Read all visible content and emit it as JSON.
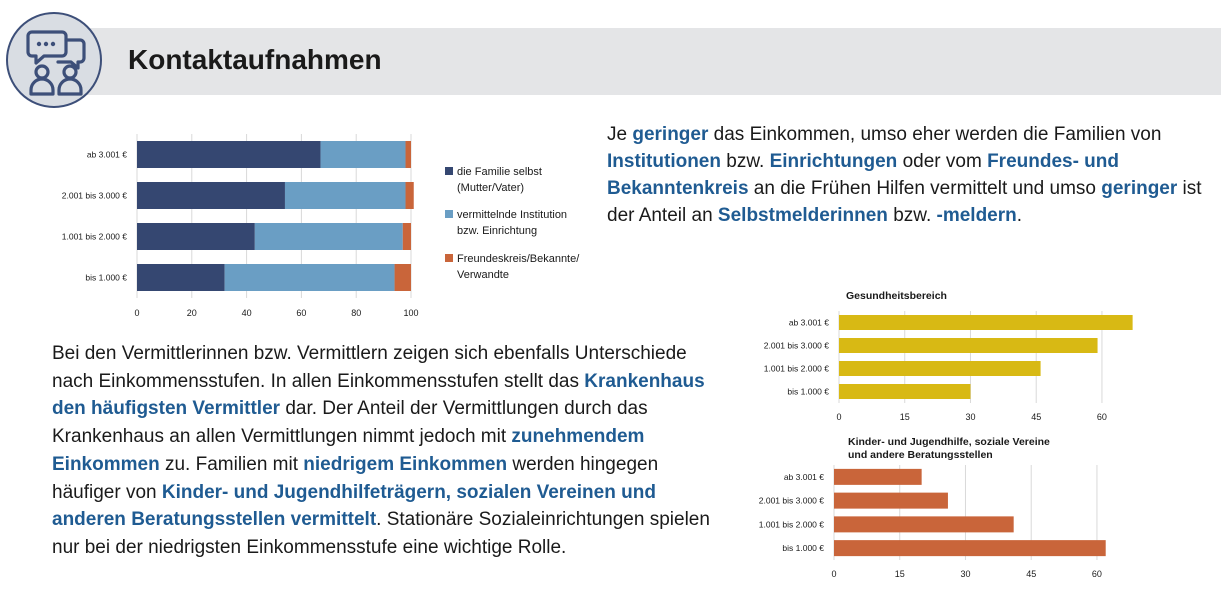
{
  "header": {
    "title": "Kontaktaufnahmen",
    "icon": "chat-people-icon"
  },
  "colors": {
    "dark_blue": "#354771",
    "mid_blue": "#6a9ec4",
    "orange": "#c9653a",
    "yellow": "#d8b914",
    "highlight": "#1f5b92"
  },
  "text1": [
    {
      "t": "Je "
    },
    {
      "t": "geringer",
      "h": true
    },
    {
      "t": " das Einkommen, umso eher werden die Familien von "
    },
    {
      "t": "Institutionen",
      "h": true
    },
    {
      "t": " bzw. "
    },
    {
      "t": "Einrichtungen",
      "h": true
    },
    {
      "t": " oder vom "
    },
    {
      "t": "Freundes- und Bekanntenkreis",
      "h": true
    },
    {
      "t": " an die Frühen Hilfen vermittelt und umso "
    },
    {
      "t": "geringer",
      "h": true
    },
    {
      "t": " ist der Anteil an "
    },
    {
      "t": "Selbstmelderinnen",
      "h": true
    },
    {
      "t": " bzw. "
    },
    {
      "t": "-meldern",
      "h": true
    },
    {
      "t": "."
    }
  ],
  "text2": [
    {
      "t": "Bei den Vermittlerinnen bzw. Vermittlern zeigen sich ebenfalls Unterschiede nach Einkommensstufen. In allen Einkommensstufen stellt das "
    },
    {
      "t": "Krankenhaus den häufigsten Vermittler",
      "h": true
    },
    {
      "t": " dar. Der Anteil der Vermittlungen durch das Krankenhaus an allen Vermittlungen nimmt jedoch mit "
    },
    {
      "t": "zunehmendem Einkommen",
      "h": true
    },
    {
      "t": " zu. Familien mit "
    },
    {
      "t": "niedrigem Einkommen",
      "h": true
    },
    {
      "t": " werden hingegen häufiger von "
    },
    {
      "t": "Kinder- und Jugendhilfeträgern, sozialen Vereinen und anderen Beratungsstellen vermittelt",
      "h": true
    },
    {
      "t": ". Stationäre Sozialeinrichtungen spielen nur bei der niedrigsten Einkommensstufe eine wichtige Rolle."
    }
  ],
  "chart_data": [
    {
      "type": "bar",
      "orientation": "horizontal",
      "stacked": true,
      "categories": [
        "ab 3.001 €",
        "2.001 bis 3.000 €",
        "1.001 bis 2.000 €",
        "bis 1.000 €"
      ],
      "series": [
        {
          "name": "die Familie selbst (Mutter/Vater)",
          "values": [
            67,
            54,
            43,
            32
          ]
        },
        {
          "name": "vermittelnde Institution bzw. Einrichtung",
          "values": [
            31,
            44,
            54,
            62
          ]
        },
        {
          "name": "Freundeskreis/Bekannte/ Verwandte",
          "values": [
            2,
            3,
            3,
            6
          ]
        }
      ],
      "xlim": [
        0,
        100
      ],
      "xticks": [
        0,
        20,
        40,
        60,
        80,
        100
      ],
      "grid": true,
      "legend": "right",
      "legend_lines": [
        [
          "die Familie selbst",
          "(Mutter/Vater)"
        ],
        [
          "vermittelnde Institution",
          "bzw. Einrichtung"
        ],
        [
          "Freundeskreis/Bekannte/",
          "Verwandte"
        ]
      ]
    },
    {
      "type": "bar",
      "orientation": "horizontal",
      "title_lines": [
        "Gesundheitsbereich"
      ],
      "categories": [
        "ab 3.001 €",
        "2.001 bis 3.000 €",
        "1.001 bis 2.000 €",
        "bis 1.000 €"
      ],
      "values": [
        67,
        59,
        46,
        30
      ],
      "xlim": [
        0,
        68
      ],
      "xticks": [
        0,
        15,
        30,
        45,
        60
      ],
      "grid": true
    },
    {
      "type": "bar",
      "orientation": "horizontal",
      "title_lines": [
        "Kinder- und Jugendhilfe, soziale Vereine",
        "und andere Beratungsstellen"
      ],
      "categories": [
        "ab 3.001 €",
        "2.001 bis 3.000 €",
        "1.001 bis 2.000 €",
        "bis 1.000 €"
      ],
      "values": [
        20,
        26,
        41,
        62
      ],
      "xlim": [
        0,
        68
      ],
      "xticks": [
        0,
        15,
        30,
        45,
        60
      ],
      "grid": true
    }
  ]
}
